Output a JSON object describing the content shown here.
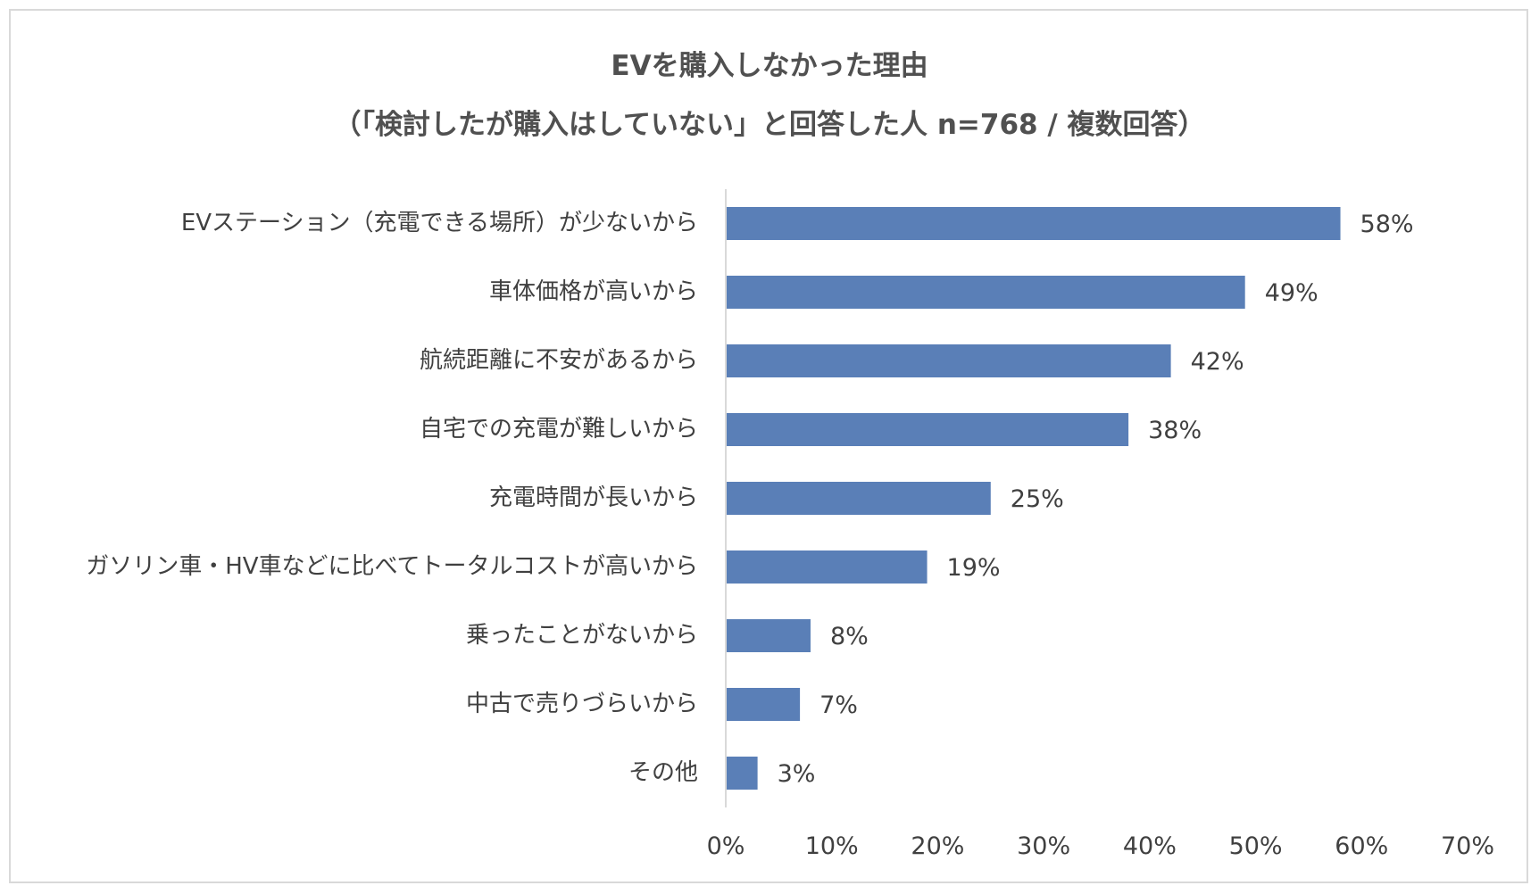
{
  "chart_data": {
    "type": "bar",
    "orientation": "horizontal",
    "title": "EVを購入しなかった理由",
    "subtitle": "（「検討したが購入はしていない」と回答した人 n=768 / 複数回答）",
    "categories": [
      "EVステーション（充電できる場所）が少ないから",
      "車体価格が高いから",
      "航続距離に不安があるから",
      "自宅での充電が難しいから",
      "充電時間が長いから",
      "ガソリン車・HV車などに比べてトータルコストが高いから",
      "乗ったことがないから",
      "中古で売りづらいから",
      "その他"
    ],
    "values": [
      58,
      49,
      42,
      38,
      25,
      19,
      8,
      7,
      3
    ],
    "value_labels": [
      "58%",
      "49%",
      "42%",
      "38%",
      "25%",
      "19%",
      "8%",
      "7%",
      "3%"
    ],
    "xlim": [
      0,
      70
    ],
    "xticks": [
      0,
      10,
      20,
      30,
      40,
      50,
      60,
      70
    ],
    "xtick_labels": [
      "0%",
      "10%",
      "20%",
      "30%",
      "40%",
      "50%",
      "60%",
      "70%"
    ],
    "grid": false,
    "legend": "none",
    "bar_color": "#5a7fb7",
    "axis_color": "#d9d9d9"
  }
}
